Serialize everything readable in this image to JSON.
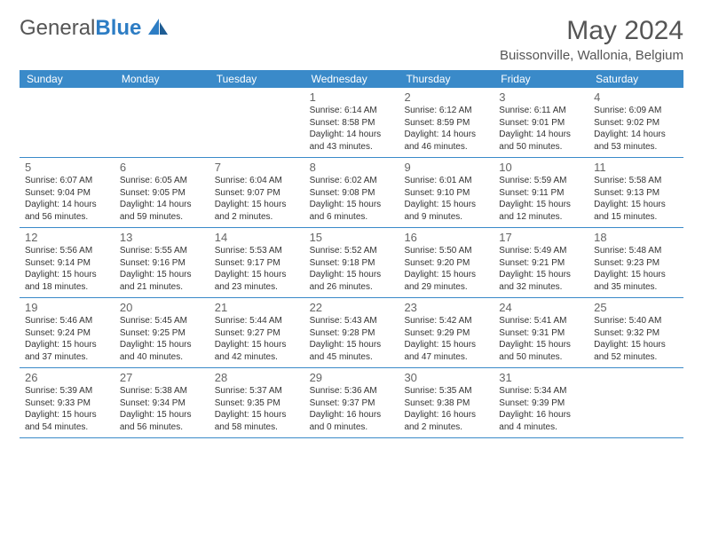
{
  "logo": {
    "text1": "General",
    "text2": "Blue"
  },
  "title": "May 2024",
  "location": "Buissonville, Wallonia, Belgium",
  "colors": {
    "header_bg": "#3a8ac9",
    "header_text": "#ffffff",
    "border": "#3a8ac9",
    "title_text": "#555555",
    "day_num": "#666666",
    "body_text": "#333333",
    "logo_gray": "#555555",
    "logo_blue": "#2d7dc4",
    "background": "#ffffff"
  },
  "typography": {
    "title_fontsize": 30,
    "location_fontsize": 15,
    "dayheader_fontsize": 12,
    "daynum_fontsize": 13,
    "body_fontsize": 10
  },
  "day_headers": [
    "Sunday",
    "Monday",
    "Tuesday",
    "Wednesday",
    "Thursday",
    "Friday",
    "Saturday"
  ],
  "weeks": [
    [
      {
        "num": "",
        "sunrise": "",
        "sunset": "",
        "daylight1": "",
        "daylight2": ""
      },
      {
        "num": "",
        "sunrise": "",
        "sunset": "",
        "daylight1": "",
        "daylight2": ""
      },
      {
        "num": "",
        "sunrise": "",
        "sunset": "",
        "daylight1": "",
        "daylight2": ""
      },
      {
        "num": "1",
        "sunrise": "Sunrise: 6:14 AM",
        "sunset": "Sunset: 8:58 PM",
        "daylight1": "Daylight: 14 hours",
        "daylight2": "and 43 minutes."
      },
      {
        "num": "2",
        "sunrise": "Sunrise: 6:12 AM",
        "sunset": "Sunset: 8:59 PM",
        "daylight1": "Daylight: 14 hours",
        "daylight2": "and 46 minutes."
      },
      {
        "num": "3",
        "sunrise": "Sunrise: 6:11 AM",
        "sunset": "Sunset: 9:01 PM",
        "daylight1": "Daylight: 14 hours",
        "daylight2": "and 50 minutes."
      },
      {
        "num": "4",
        "sunrise": "Sunrise: 6:09 AM",
        "sunset": "Sunset: 9:02 PM",
        "daylight1": "Daylight: 14 hours",
        "daylight2": "and 53 minutes."
      }
    ],
    [
      {
        "num": "5",
        "sunrise": "Sunrise: 6:07 AM",
        "sunset": "Sunset: 9:04 PM",
        "daylight1": "Daylight: 14 hours",
        "daylight2": "and 56 minutes."
      },
      {
        "num": "6",
        "sunrise": "Sunrise: 6:05 AM",
        "sunset": "Sunset: 9:05 PM",
        "daylight1": "Daylight: 14 hours",
        "daylight2": "and 59 minutes."
      },
      {
        "num": "7",
        "sunrise": "Sunrise: 6:04 AM",
        "sunset": "Sunset: 9:07 PM",
        "daylight1": "Daylight: 15 hours",
        "daylight2": "and 2 minutes."
      },
      {
        "num": "8",
        "sunrise": "Sunrise: 6:02 AM",
        "sunset": "Sunset: 9:08 PM",
        "daylight1": "Daylight: 15 hours",
        "daylight2": "and 6 minutes."
      },
      {
        "num": "9",
        "sunrise": "Sunrise: 6:01 AM",
        "sunset": "Sunset: 9:10 PM",
        "daylight1": "Daylight: 15 hours",
        "daylight2": "and 9 minutes."
      },
      {
        "num": "10",
        "sunrise": "Sunrise: 5:59 AM",
        "sunset": "Sunset: 9:11 PM",
        "daylight1": "Daylight: 15 hours",
        "daylight2": "and 12 minutes."
      },
      {
        "num": "11",
        "sunrise": "Sunrise: 5:58 AM",
        "sunset": "Sunset: 9:13 PM",
        "daylight1": "Daylight: 15 hours",
        "daylight2": "and 15 minutes."
      }
    ],
    [
      {
        "num": "12",
        "sunrise": "Sunrise: 5:56 AM",
        "sunset": "Sunset: 9:14 PM",
        "daylight1": "Daylight: 15 hours",
        "daylight2": "and 18 minutes."
      },
      {
        "num": "13",
        "sunrise": "Sunrise: 5:55 AM",
        "sunset": "Sunset: 9:16 PM",
        "daylight1": "Daylight: 15 hours",
        "daylight2": "and 21 minutes."
      },
      {
        "num": "14",
        "sunrise": "Sunrise: 5:53 AM",
        "sunset": "Sunset: 9:17 PM",
        "daylight1": "Daylight: 15 hours",
        "daylight2": "and 23 minutes."
      },
      {
        "num": "15",
        "sunrise": "Sunrise: 5:52 AM",
        "sunset": "Sunset: 9:18 PM",
        "daylight1": "Daylight: 15 hours",
        "daylight2": "and 26 minutes."
      },
      {
        "num": "16",
        "sunrise": "Sunrise: 5:50 AM",
        "sunset": "Sunset: 9:20 PM",
        "daylight1": "Daylight: 15 hours",
        "daylight2": "and 29 minutes."
      },
      {
        "num": "17",
        "sunrise": "Sunrise: 5:49 AM",
        "sunset": "Sunset: 9:21 PM",
        "daylight1": "Daylight: 15 hours",
        "daylight2": "and 32 minutes."
      },
      {
        "num": "18",
        "sunrise": "Sunrise: 5:48 AM",
        "sunset": "Sunset: 9:23 PM",
        "daylight1": "Daylight: 15 hours",
        "daylight2": "and 35 minutes."
      }
    ],
    [
      {
        "num": "19",
        "sunrise": "Sunrise: 5:46 AM",
        "sunset": "Sunset: 9:24 PM",
        "daylight1": "Daylight: 15 hours",
        "daylight2": "and 37 minutes."
      },
      {
        "num": "20",
        "sunrise": "Sunrise: 5:45 AM",
        "sunset": "Sunset: 9:25 PM",
        "daylight1": "Daylight: 15 hours",
        "daylight2": "and 40 minutes."
      },
      {
        "num": "21",
        "sunrise": "Sunrise: 5:44 AM",
        "sunset": "Sunset: 9:27 PM",
        "daylight1": "Daylight: 15 hours",
        "daylight2": "and 42 minutes."
      },
      {
        "num": "22",
        "sunrise": "Sunrise: 5:43 AM",
        "sunset": "Sunset: 9:28 PM",
        "daylight1": "Daylight: 15 hours",
        "daylight2": "and 45 minutes."
      },
      {
        "num": "23",
        "sunrise": "Sunrise: 5:42 AM",
        "sunset": "Sunset: 9:29 PM",
        "daylight1": "Daylight: 15 hours",
        "daylight2": "and 47 minutes."
      },
      {
        "num": "24",
        "sunrise": "Sunrise: 5:41 AM",
        "sunset": "Sunset: 9:31 PM",
        "daylight1": "Daylight: 15 hours",
        "daylight2": "and 50 minutes."
      },
      {
        "num": "25",
        "sunrise": "Sunrise: 5:40 AM",
        "sunset": "Sunset: 9:32 PM",
        "daylight1": "Daylight: 15 hours",
        "daylight2": "and 52 minutes."
      }
    ],
    [
      {
        "num": "26",
        "sunrise": "Sunrise: 5:39 AM",
        "sunset": "Sunset: 9:33 PM",
        "daylight1": "Daylight: 15 hours",
        "daylight2": "and 54 minutes."
      },
      {
        "num": "27",
        "sunrise": "Sunrise: 5:38 AM",
        "sunset": "Sunset: 9:34 PM",
        "daylight1": "Daylight: 15 hours",
        "daylight2": "and 56 minutes."
      },
      {
        "num": "28",
        "sunrise": "Sunrise: 5:37 AM",
        "sunset": "Sunset: 9:35 PM",
        "daylight1": "Daylight: 15 hours",
        "daylight2": "and 58 minutes."
      },
      {
        "num": "29",
        "sunrise": "Sunrise: 5:36 AM",
        "sunset": "Sunset: 9:37 PM",
        "daylight1": "Daylight: 16 hours",
        "daylight2": "and 0 minutes."
      },
      {
        "num": "30",
        "sunrise": "Sunrise: 5:35 AM",
        "sunset": "Sunset: 9:38 PM",
        "daylight1": "Daylight: 16 hours",
        "daylight2": "and 2 minutes."
      },
      {
        "num": "31",
        "sunrise": "Sunrise: 5:34 AM",
        "sunset": "Sunset: 9:39 PM",
        "daylight1": "Daylight: 16 hours",
        "daylight2": "and 4 minutes."
      },
      {
        "num": "",
        "sunrise": "",
        "sunset": "",
        "daylight1": "",
        "daylight2": ""
      }
    ]
  ]
}
